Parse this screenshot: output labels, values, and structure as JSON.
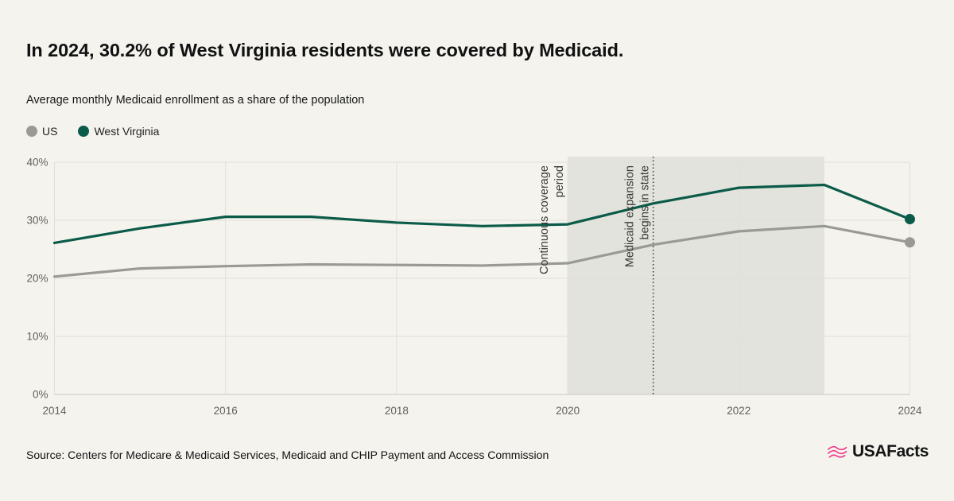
{
  "page": {
    "title": "In 2024, 30.2% of West Virginia residents were covered by Medicaid.",
    "subtitle": "Average monthly Medicaid enrollment as a share of the population",
    "source": "Source: Centers for Medicare & Medicaid Services, Medicaid and CHIP Payment and Access Commission",
    "brand": "USAFacts"
  },
  "colors": {
    "background": "#f4f3ee",
    "us_line": "#9a9a95",
    "wv_line": "#0b5b49",
    "shaded_region": "#e3e3dd",
    "gridline": "#dfdfd8",
    "axis_line": "#c9c9c1",
    "tick_label": "#62625d",
    "annotation_text": "#3a3a36",
    "vline": "#3f3f3c",
    "brand_pink": "#ee3d8b"
  },
  "legend": [
    {
      "label": "US",
      "color": "#9a9a95"
    },
    {
      "label": "West Virginia",
      "color": "#0b5b49"
    }
  ],
  "chart_data": {
    "type": "line",
    "title": "Average monthly Medicaid enrollment as a share of the population",
    "x": [
      2014,
      2015,
      2016,
      2017,
      2018,
      2019,
      2020,
      2021,
      2022,
      2023,
      2024
    ],
    "series": [
      {
        "name": "US",
        "color": "#9a9a95",
        "values": [
          20.3,
          21.7,
          22.1,
          22.4,
          22.3,
          22.2,
          22.6,
          25.8,
          28.1,
          29.0,
          26.2
        ],
        "end_dot": true
      },
      {
        "name": "West Virginia",
        "color": "#0b5b49",
        "values": [
          26.1,
          28.6,
          30.6,
          30.6,
          29.6,
          29.0,
          29.3,
          32.9,
          35.6,
          36.1,
          30.2
        ],
        "end_dot": true
      }
    ],
    "xlim": [
      2014,
      2024
    ],
    "ylim": [
      0,
      40
    ],
    "xticks": [
      2014,
      2016,
      2018,
      2020,
      2022,
      2024
    ],
    "yticks": [
      0,
      10,
      20,
      30,
      40
    ],
    "ytick_suffix": "%",
    "grid": true,
    "legend_position": "top-left",
    "shaded_region": {
      "x_start": 2020,
      "x_end": 2023,
      "label_lines": [
        "Continuous coverage",
        "period"
      ]
    },
    "vline": {
      "x": 2021,
      "style": "dotted",
      "label_lines": [
        "Medicaid expansion",
        "begins in state"
      ]
    }
  }
}
